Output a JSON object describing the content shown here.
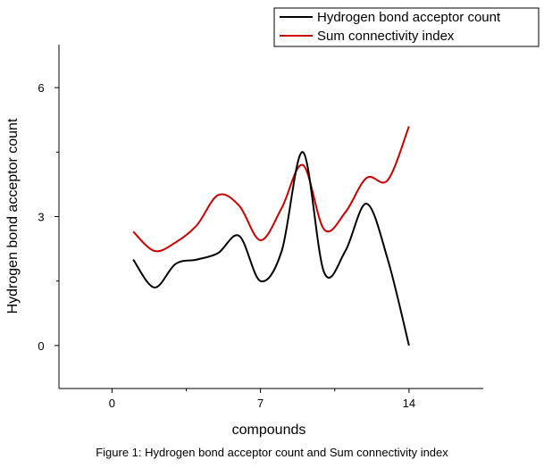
{
  "chart_data": {
    "type": "line",
    "xlabel": "compounds",
    "ylabel": "Hydrogen bond acceptor count",
    "xlim": [
      -2.5,
      17.5
    ],
    "ylim": [
      -1,
      7
    ],
    "xticks": [
      0,
      7,
      14
    ],
    "yticks": [
      0,
      3,
      6
    ],
    "legend_position": "top-right",
    "x": [
      1,
      2,
      3,
      4,
      5,
      6,
      7,
      8,
      9,
      10,
      11,
      12,
      13,
      14
    ],
    "series": [
      {
        "name": "Hydrogen bond acceptor count",
        "color": "#000000",
        "values": [
          2.0,
          1.35,
          1.9,
          2.0,
          2.15,
          2.55,
          1.5,
          2.2,
          4.5,
          1.7,
          2.2,
          3.3,
          2.0,
          0.0
        ]
      },
      {
        "name": "Sum connectivity index",
        "color": "#cc0000",
        "values": [
          2.65,
          2.2,
          2.4,
          2.8,
          3.5,
          3.25,
          2.45,
          3.2,
          4.2,
          2.7,
          3.1,
          3.9,
          3.85,
          5.1
        ]
      }
    ]
  },
  "caption": "Figure 1: Hydrogen bond acceptor count and Sum connectivity index"
}
